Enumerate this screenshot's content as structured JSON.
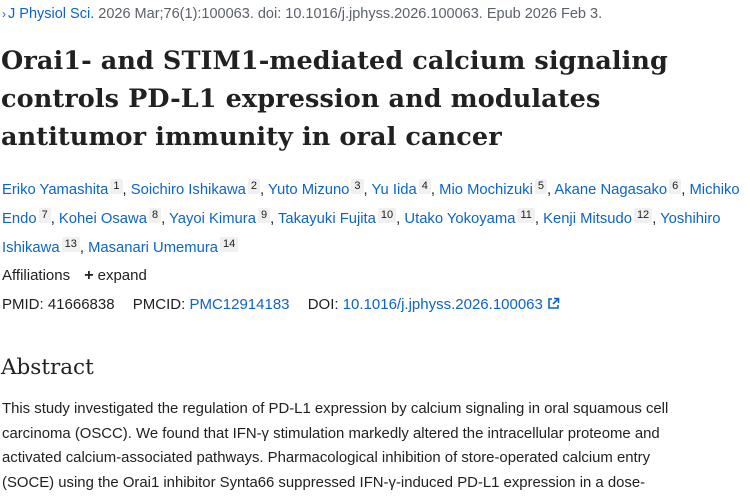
{
  "citation": {
    "journal": "J Physiol Sci.",
    "details": "2026 Mar;76(1):100063. doi: 10.1016/j.jphyss.2026.100063. Epub 2026 Feb 3."
  },
  "title": "Orai1- and STIM1-mediated calcium signaling controls PD-L1 expression and modulates antitumor immunity in oral cancer",
  "authors": [
    {
      "name": "Eriko Yamashita",
      "aff": "1"
    },
    {
      "name": "Soichiro Ishikawa",
      "aff": "2"
    },
    {
      "name": "Yuto Mizuno",
      "aff": "3"
    },
    {
      "name": "Yu Iida",
      "aff": "4"
    },
    {
      "name": "Mio Mochizuki",
      "aff": "5"
    },
    {
      "name": "Akane Nagasako",
      "aff": "6"
    },
    {
      "name": "Michiko Endo",
      "aff": "7"
    },
    {
      "name": "Kohei Osawa",
      "aff": "8"
    },
    {
      "name": "Yayoi Kimura",
      "aff": "9"
    },
    {
      "name": "Takayuki Fujita",
      "aff": "10"
    },
    {
      "name": "Utako Yokoyama",
      "aff": "11"
    },
    {
      "name": "Kenji Mitsudo",
      "aff": "12"
    },
    {
      "name": "Yoshihiro Ishikawa",
      "aff": "13"
    },
    {
      "name": "Masanari Umemura",
      "aff": "14"
    }
  ],
  "affiliations": {
    "label": "Affiliations",
    "expand_label": "expand",
    "expand_icon": "plus-icon"
  },
  "ids": {
    "pmid_label": "PMID:",
    "pmid": "41666838",
    "pmcid_label": "PMCID:",
    "pmcid": "PMC12914183",
    "doi_label": "DOI:",
    "doi": "10.1016/j.jphyss.2026.100063",
    "doi_icon": "external-link-icon"
  },
  "abstract": {
    "heading": "Abstract",
    "lines": [
      "This study investigated the regulation of PD-L1 expression by calcium signaling in oral squamous cell",
      "carcinoma (OSCC). We found that IFN-γ stimulation markedly altered the intracellular proteome and",
      "activated calcium-associated pathways. Pharmacological inhibition of store-operated calcium entry",
      "(SOCE) using the Orai1 inhibitor Synta66 suppressed IFN-γ-induced PD-L1 expression in a dose-"
    ]
  },
  "colors": {
    "link": "#0b63ce",
    "text": "#212121",
    "muted": "#5b616b",
    "badge_bg": "#f0f0f0"
  }
}
